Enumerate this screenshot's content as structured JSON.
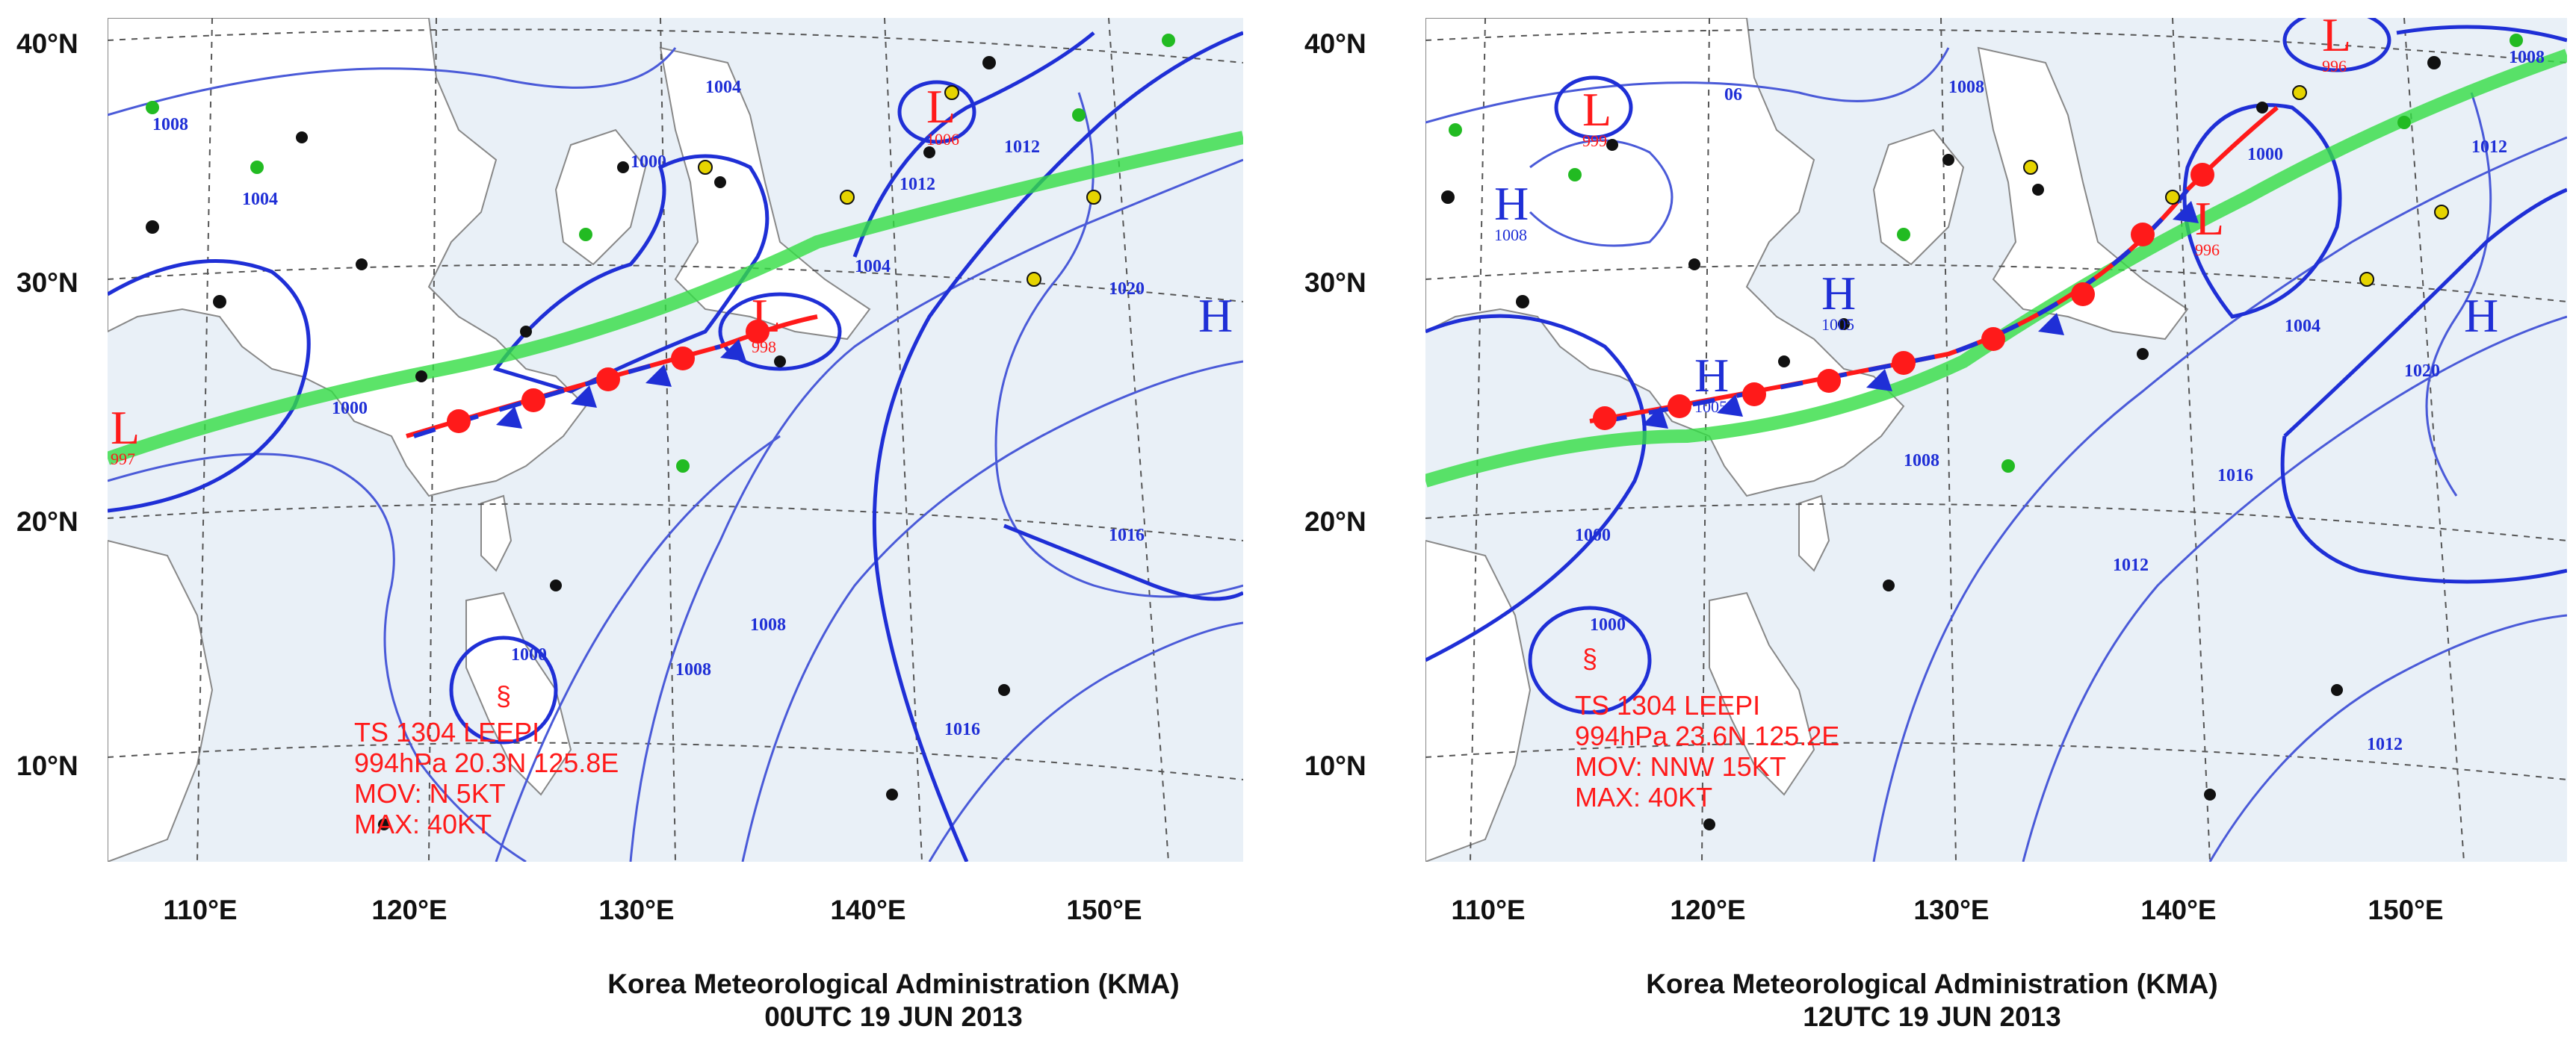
{
  "colors": {
    "land": "#ffffff",
    "sea": "#e9f0f7",
    "isobar": "#1f2fd6",
    "isobar_thin": "#4a5ad8",
    "front_warm": "#ff1a1a",
    "front_cold": "#1f2fd6",
    "rain_band": "#33dd44",
    "typhoon_text": "#ff1a1a",
    "grid": "#555555"
  },
  "maps": [
    {
      "id": "left",
      "latitude_labels": [
        "40°N",
        "30°N",
        "20°N",
        "10°N"
      ],
      "longitude_labels": [
        "110°E",
        "120°E",
        "130°E",
        "140°E",
        "150°E"
      ],
      "credit": "Korea Meteorological Administration (KMA)",
      "time": "00UTC 19 JUN 2013",
      "typhoon": {
        "name": "TS 1304 LEEPI",
        "position": "994hPa 20.3N 125.8E",
        "movement": "MOV: N 5KT",
        "max_wind": "MAX: 40KT"
      },
      "pressure_centers": [
        {
          "type": "L",
          "value": "1006"
        },
        {
          "type": "L",
          "value": "997"
        },
        {
          "type": "L",
          "value": "998"
        },
        {
          "type": "H",
          "value": ""
        }
      ],
      "isobar_labels": [
        "1004",
        "1008",
        "1012",
        "1016",
        "1000",
        "1004",
        "1008",
        "1020",
        "1008",
        "1004",
        "1000",
        "1016",
        "1012"
      ]
    },
    {
      "id": "right",
      "latitude_labels": [
        "40°N",
        "30°N",
        "20°N",
        "10°N"
      ],
      "longitude_labels": [
        "110°E",
        "120°E",
        "130°E",
        "140°E",
        "150°E"
      ],
      "credit": "Korea Meteorological Administration (KMA)",
      "time": "12UTC 19 JUN 2013",
      "typhoon": {
        "name": "TS 1304 LEEPI",
        "position": "994hPa 23.6N 125.2E",
        "movement": "MOV: NNW 15KT",
        "max_wind": "MAX: 40KT"
      },
      "pressure_centers": [
        {
          "type": "L",
          "value": "996"
        },
        {
          "type": "L",
          "value": "999"
        },
        {
          "type": "L",
          "value": "996"
        },
        {
          "type": "H",
          "value": "1008"
        },
        {
          "type": "H",
          "value": "1005"
        },
        {
          "type": "H",
          "value": "1005"
        },
        {
          "type": "H",
          "value": ""
        }
      ],
      "isobar_labels": [
        "1008",
        "1000",
        "1004",
        "1008",
        "1012",
        "1016",
        "1020",
        "1012",
        "1008",
        "1000",
        "1000",
        "1012",
        "06"
      ]
    }
  ]
}
